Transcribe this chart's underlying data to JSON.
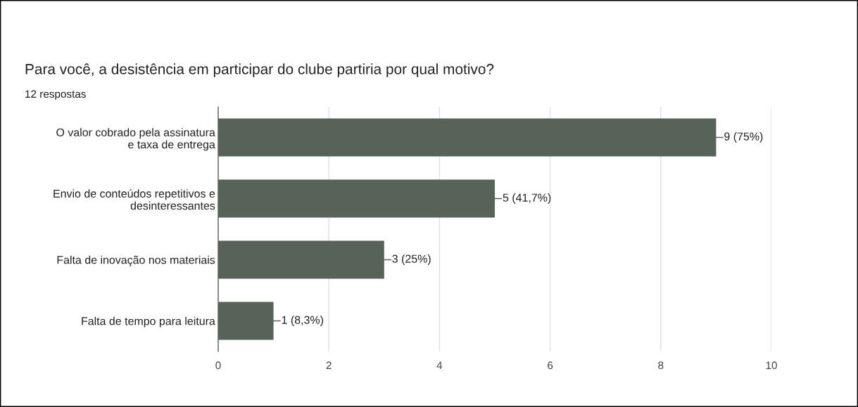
{
  "chart_data": {
    "type": "bar",
    "orientation": "horizontal",
    "title": "Para você, a desistência em participar do clube partiria por qual motivo?",
    "subtitle": "12 respostas",
    "categories": [
      "O valor cobrado pela assinatura\ne taxa de entrega",
      "Envio de conteúdos repetitivos e\ndesinteressantes",
      "Falta de inovação nos materiais",
      "Falta de tempo para leitura"
    ],
    "values": [
      9,
      5,
      3,
      1
    ],
    "color": "#566358",
    "value_labels": [
      "9 (75%)",
      "5 (41,7%)",
      "3 (25%)",
      "1 (8,3%)"
    ],
    "xlim": [
      0,
      10
    ],
    "xticks": [
      0,
      2,
      4,
      6,
      8,
      10
    ],
    "grid": "x",
    "legend": false
  }
}
